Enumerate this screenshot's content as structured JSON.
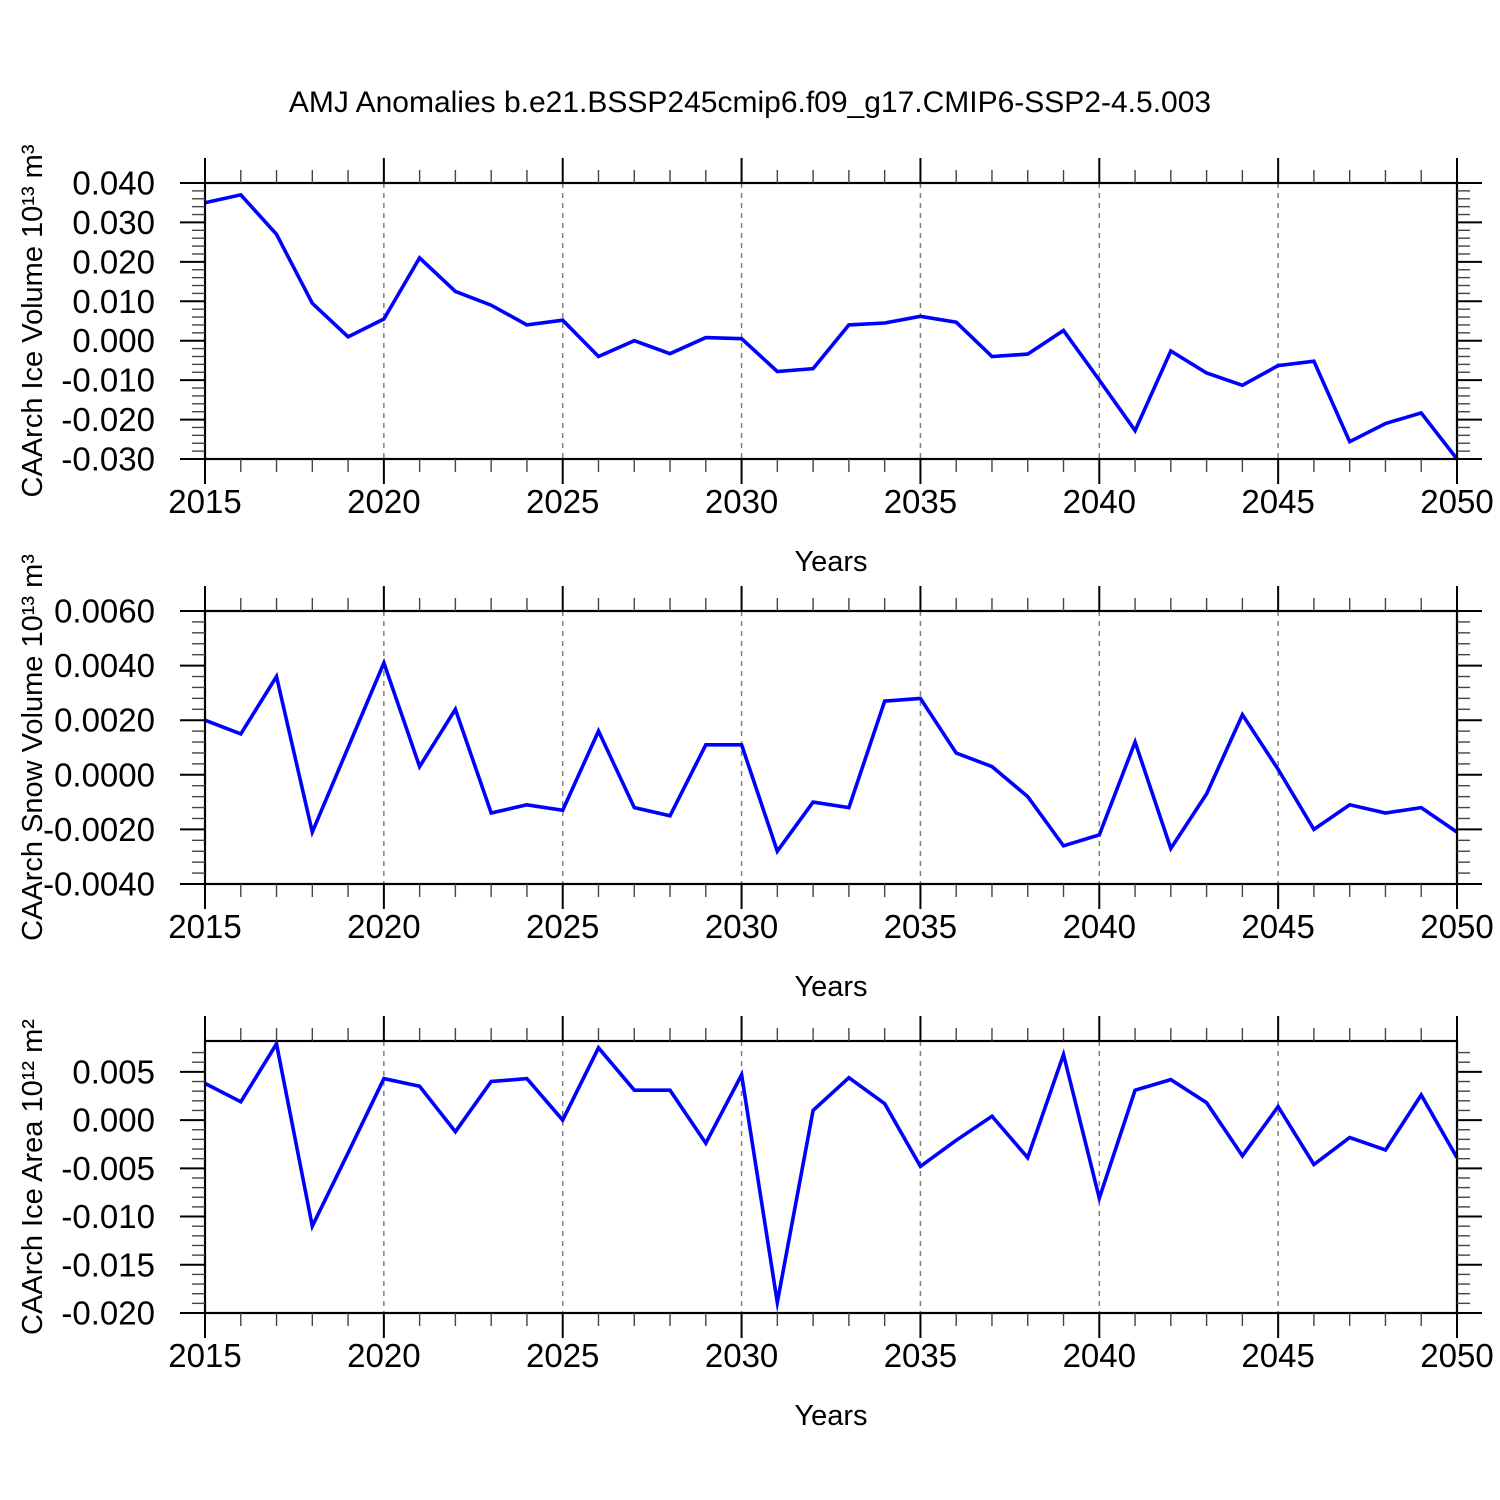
{
  "figure": {
    "title": "AMJ Anomalies b.e21.BSSP245cmip6.f09_g17.CMIP6-SSP2-4.5.003",
    "background": "#ffffff",
    "line_color": "#0000ff",
    "grid_color": "#808080",
    "axis_color": "#000000"
  },
  "chart_data": [
    {
      "type": "line",
      "name": "ice-volume",
      "ylabel": "CAArch Ice Volume 10¹³ m³",
      "xlabel": "Years",
      "x": [
        2015,
        2016,
        2017,
        2018,
        2019,
        2020,
        2021,
        2022,
        2023,
        2024,
        2025,
        2026,
        2027,
        2028,
        2029,
        2030,
        2031,
        2032,
        2033,
        2034,
        2035,
        2036,
        2037,
        2038,
        2039,
        2040,
        2041,
        2042,
        2043,
        2044,
        2045,
        2046,
        2047,
        2048,
        2049,
        2050
      ],
      "values": [
        0.035,
        0.037,
        0.027,
        0.0095,
        0.001,
        0.0055,
        0.021,
        0.0125,
        0.009,
        0.004,
        0.0052,
        -0.004,
        0.0,
        -0.0033,
        0.0008,
        0.0005,
        -0.0078,
        -0.0071,
        0.004,
        0.0045,
        0.0062,
        0.0047,
        -0.004,
        -0.0034,
        0.0026,
        -0.01,
        -0.0228,
        -0.0026,
        -0.0082,
        -0.0113,
        -0.0063,
        -0.0052,
        -0.0256,
        -0.021,
        -0.0183,
        -0.03
      ],
      "xlim": [
        2015,
        2050
      ],
      "ylim": [
        -0.03,
        0.04
      ],
      "yticks": [
        0.04,
        0.03,
        0.02,
        0.01,
        0.0,
        -0.01,
        -0.02,
        -0.03
      ],
      "ytick_labels": [
        "0.040",
        "0.030",
        "0.020",
        "0.010",
        "0.000",
        "-0.010",
        "-0.020",
        "-0.030"
      ],
      "yminor_step": 0.002,
      "xticks": [
        2015,
        2020,
        2025,
        2030,
        2035,
        2040,
        2045,
        2050
      ],
      "xminor_step": 1,
      "grid_x": [
        2020,
        2025,
        2030,
        2035,
        2040,
        2045
      ],
      "grid": "vertical-dashed",
      "legend": "none"
    },
    {
      "type": "line",
      "name": "snow-volume",
      "ylabel": "CAArch Snow Volume 10¹³ m³",
      "xlabel": "Years",
      "x": [
        2015,
        2016,
        2017,
        2018,
        2019,
        2020,
        2021,
        2022,
        2023,
        2024,
        2025,
        2026,
        2027,
        2028,
        2029,
        2030,
        2031,
        2032,
        2033,
        2034,
        2035,
        2036,
        2037,
        2038,
        2039,
        2040,
        2041,
        2042,
        2043,
        2044,
        2045,
        2046,
        2047,
        2048,
        2049,
        2050
      ],
      "values": [
        0.002,
        0.0015,
        0.0036,
        -0.0021,
        0.001,
        0.0041,
        0.0003,
        0.0024,
        -0.0014,
        -0.0011,
        -0.0013,
        0.0016,
        -0.0012,
        -0.0015,
        0.0011,
        0.0011,
        -0.0028,
        -0.001,
        -0.0012,
        0.0027,
        0.0028,
        0.0008,
        0.0003,
        -0.0008,
        -0.0026,
        -0.0022,
        0.0012,
        -0.0027,
        -0.0007,
        0.0022,
        0.0002,
        -0.002,
        -0.0011,
        -0.0014,
        -0.0012,
        -0.0021
      ],
      "xlim": [
        2015,
        2050
      ],
      "ylim": [
        -0.004,
        0.006
      ],
      "yticks": [
        0.006,
        0.004,
        0.002,
        0.0,
        -0.002,
        -0.004
      ],
      "ytick_labels": [
        "0.0060",
        "0.0040",
        "0.0020",
        "0.0000",
        "-0.0020",
        "-0.0040"
      ],
      "yminor_step": 0.0004,
      "xticks": [
        2015,
        2020,
        2025,
        2030,
        2035,
        2040,
        2045,
        2050
      ],
      "xminor_step": 1,
      "grid_x": [
        2020,
        2025,
        2030,
        2035,
        2040,
        2045
      ],
      "grid": "vertical-dashed",
      "legend": "none"
    },
    {
      "type": "line",
      "name": "ice-area",
      "ylabel": "CAArch Ice Area 10¹² m²",
      "xlabel": "Years",
      "x": [
        2015,
        2016,
        2017,
        2018,
        2019,
        2020,
        2021,
        2022,
        2023,
        2024,
        2025,
        2026,
        2027,
        2028,
        2029,
        2030,
        2031,
        2032,
        2033,
        2034,
        2035,
        2036,
        2037,
        2038,
        2039,
        2040,
        2041,
        2042,
        2043,
        2044,
        2045,
        2046,
        2047,
        2048,
        2049,
        2050
      ],
      "values": [
        0.0038,
        0.0019,
        0.0079,
        -0.011,
        -0.0034,
        0.0043,
        0.0035,
        -0.0012,
        0.004,
        0.0043,
        0.0,
        0.0075,
        0.0031,
        0.0031,
        -0.0024,
        0.0047,
        -0.0189,
        0.001,
        0.0044,
        0.0017,
        -0.0048,
        -0.0021,
        0.0004,
        -0.0039,
        0.0068,
        -0.0081,
        0.0031,
        0.0042,
        0.0018,
        -0.0037,
        0.0014,
        -0.0046,
        -0.0018,
        -0.0031,
        0.0026,
        -0.0039
      ],
      "xlim": [
        2015,
        2050
      ],
      "ylim": [
        -0.02,
        0.0082
      ],
      "yticks": [
        0.005,
        0.0,
        -0.005,
        -0.01,
        -0.015,
        -0.02
      ],
      "ytick_labels": [
        "0.005",
        "0.000",
        "-0.005",
        "-0.010",
        "-0.015",
        "-0.020"
      ],
      "yminor_step": 0.001,
      "xticks": [
        2015,
        2020,
        2025,
        2030,
        2035,
        2040,
        2045,
        2050
      ],
      "xminor_step": 1,
      "grid_x": [
        2020,
        2025,
        2030,
        2035,
        2040,
        2045
      ],
      "grid": "vertical-dashed",
      "legend": "none"
    }
  ]
}
